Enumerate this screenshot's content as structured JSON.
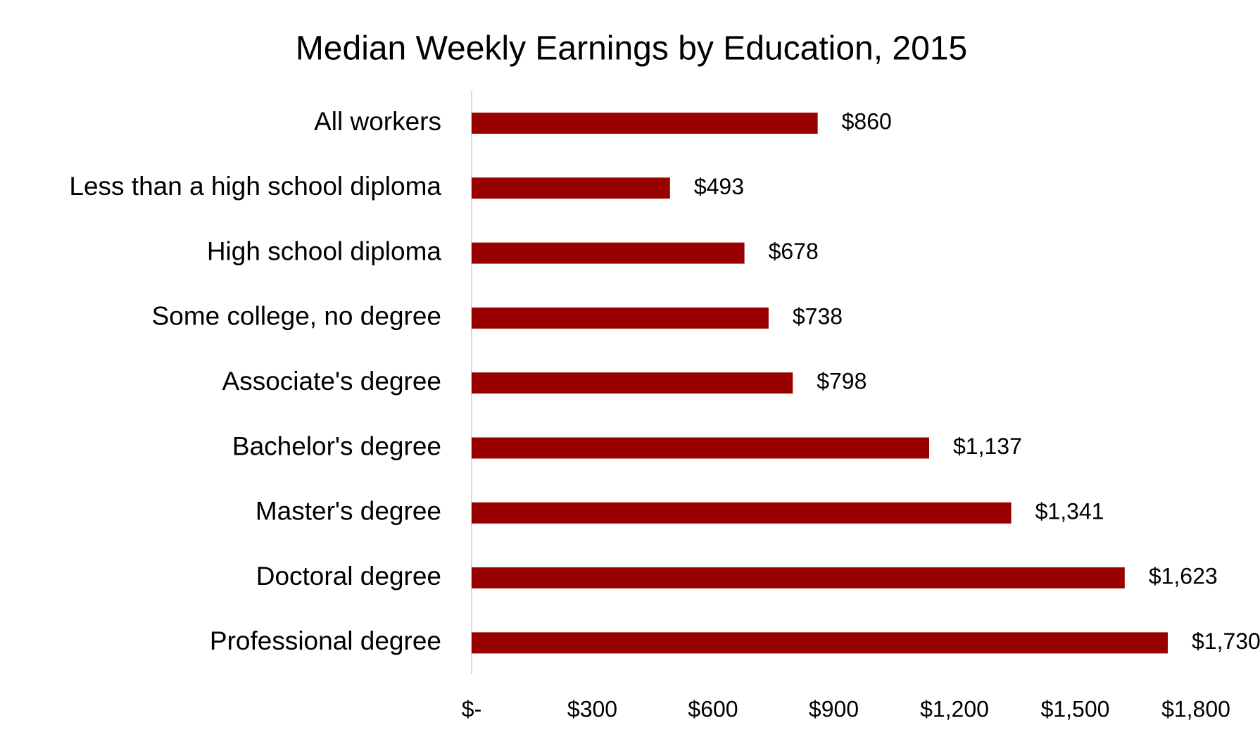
{
  "chart_data": {
    "type": "hbar",
    "title": "Median Weekly Earnings by Education, 2015",
    "categories": [
      "All workers",
      "Less than a high school diploma",
      "High school diploma",
      "Some college, no degree",
      "Associate's degree",
      "Bachelor's degree",
      "Master's degree",
      "Doctoral degree",
      "Professional degree"
    ],
    "values": [
      860,
      493,
      678,
      738,
      798,
      1137,
      1341,
      1623,
      1730
    ],
    "value_labels": [
      "$860",
      "$493",
      "$678",
      "$738",
      "$798",
      "$1,137",
      "$1,341",
      "$1,623",
      "$1,730"
    ],
    "color": "#990000",
    "xlim": [
      0,
      1800
    ],
    "xticks": [
      {
        "value": 0,
        "label": "$-"
      },
      {
        "value": 300,
        "label": "$300"
      },
      {
        "value": 600,
        "label": "$600"
      },
      {
        "value": 900,
        "label": "$900"
      },
      {
        "value": 1200,
        "label": "$1,200"
      },
      {
        "value": 1500,
        "label": "$1,500"
      },
      {
        "value": 1800,
        "label": "$1,800"
      }
    ],
    "grid": false
  }
}
